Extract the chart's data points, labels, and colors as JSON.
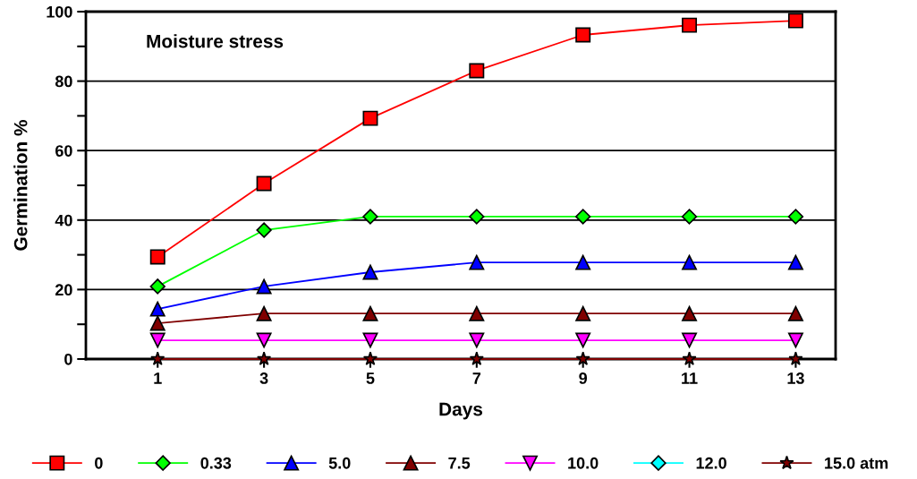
{
  "chart_data": {
    "type": "line",
    "xlabel": "Days",
    "ylabel": "Germination %",
    "annotations": [
      "Moisture stress"
    ],
    "x": [
      1,
      3,
      5,
      7,
      9,
      11,
      13
    ],
    "xlim": [
      -0.35,
      13.75
    ],
    "xticks": [
      1,
      3,
      5,
      7,
      9,
      11,
      13
    ],
    "ylim": [
      0,
      100
    ],
    "yticks": [
      0,
      {
        "value": 10,
        "label": null
      },
      20,
      {
        "value": 30,
        "label": null
      },
      40,
      {
        "value": 50,
        "label": null
      },
      60,
      {
        "value": 70,
        "label": null
      },
      80,
      {
        "value": 90,
        "label": null
      },
      100
    ],
    "grid": "y",
    "legend": "bottom",
    "series": [
      {
        "name": "0",
        "color": "#ff0000",
        "marker": "square",
        "values": [
          29.4,
          50.5,
          69.3,
          83,
          93.3,
          96.1,
          97.4
        ]
      },
      {
        "name": "0.33",
        "color": "#00ff00",
        "marker": "diamond",
        "values": [
          20.9,
          37.1,
          41,
          41,
          41,
          41,
          41
        ]
      },
      {
        "name": "5.0",
        "color": "#0000ff",
        "marker": "triangle",
        "values": [
          14.4,
          20.9,
          25,
          27.8,
          27.8,
          27.8,
          27.8
        ]
      },
      {
        "name": "7.5",
        "color": "#800000",
        "marker": "triangle",
        "values": [
          10.3,
          13.1,
          13.1,
          13.1,
          13.1,
          13.1,
          13.1
        ]
      },
      {
        "name": "10.0",
        "color": "#ff00ff",
        "marker": "triangle_down",
        "values": [
          5.4,
          5.4,
          5.4,
          5.4,
          5.4,
          5.4,
          5.4
        ]
      },
      {
        "name": "12.0",
        "color": "#00ffff",
        "marker": "diamond",
        "values": [
          null,
          null,
          null,
          null,
          null,
          null,
          null
        ]
      },
      {
        "name": "15.0 atm",
        "color": "#800000",
        "marker": "star",
        "values": [
          0,
          0,
          0,
          0,
          0,
          0,
          0
        ]
      }
    ]
  }
}
